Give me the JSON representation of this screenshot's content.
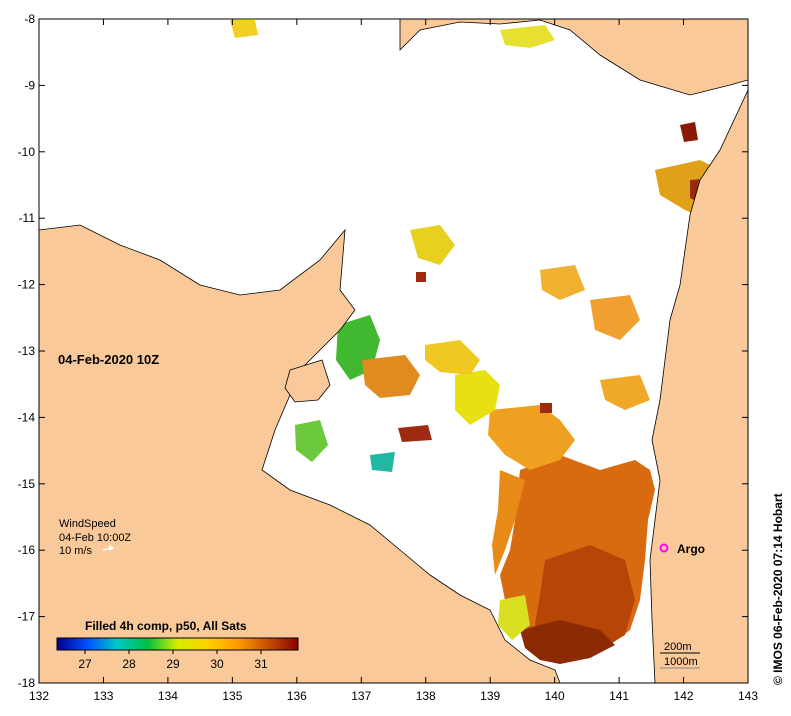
{
  "map": {
    "date_label": "04-Feb-2020 10Z",
    "x_ticks": [
      "132",
      "133",
      "134",
      "135",
      "136",
      "137",
      "138",
      "139",
      "140",
      "141",
      "142",
      "143"
    ],
    "y_ticks": [
      "-8",
      "-9",
      "-10",
      "-11",
      "-12",
      "-13",
      "-14",
      "-15",
      "-16",
      "-17",
      "-18"
    ],
    "land_color": "#f9c99a",
    "water_color": "#ffffff"
  },
  "wind": {
    "title": "WindSpeed",
    "time": "04-Feb 10:00Z",
    "scale_label": "10 m/s"
  },
  "colorbar": {
    "title": "Filled 4h comp, p50, All Sats",
    "ticks": [
      "27",
      "28",
      "29",
      "30",
      "31"
    ],
    "stops": [
      "#00008b",
      "#0050ff",
      "#00c8c8",
      "#00c040",
      "#d4ee00",
      "#ffd000",
      "#ff9a00",
      "#c85000",
      "#8b0000"
    ]
  },
  "isobaths": {
    "label_200": "200m",
    "label_1000": "1000m"
  },
  "argo": {
    "label": "Argo",
    "color": "#ff00ff"
  },
  "credit": "© IMOS 06-Feb-2020 07:14 Hobart"
}
